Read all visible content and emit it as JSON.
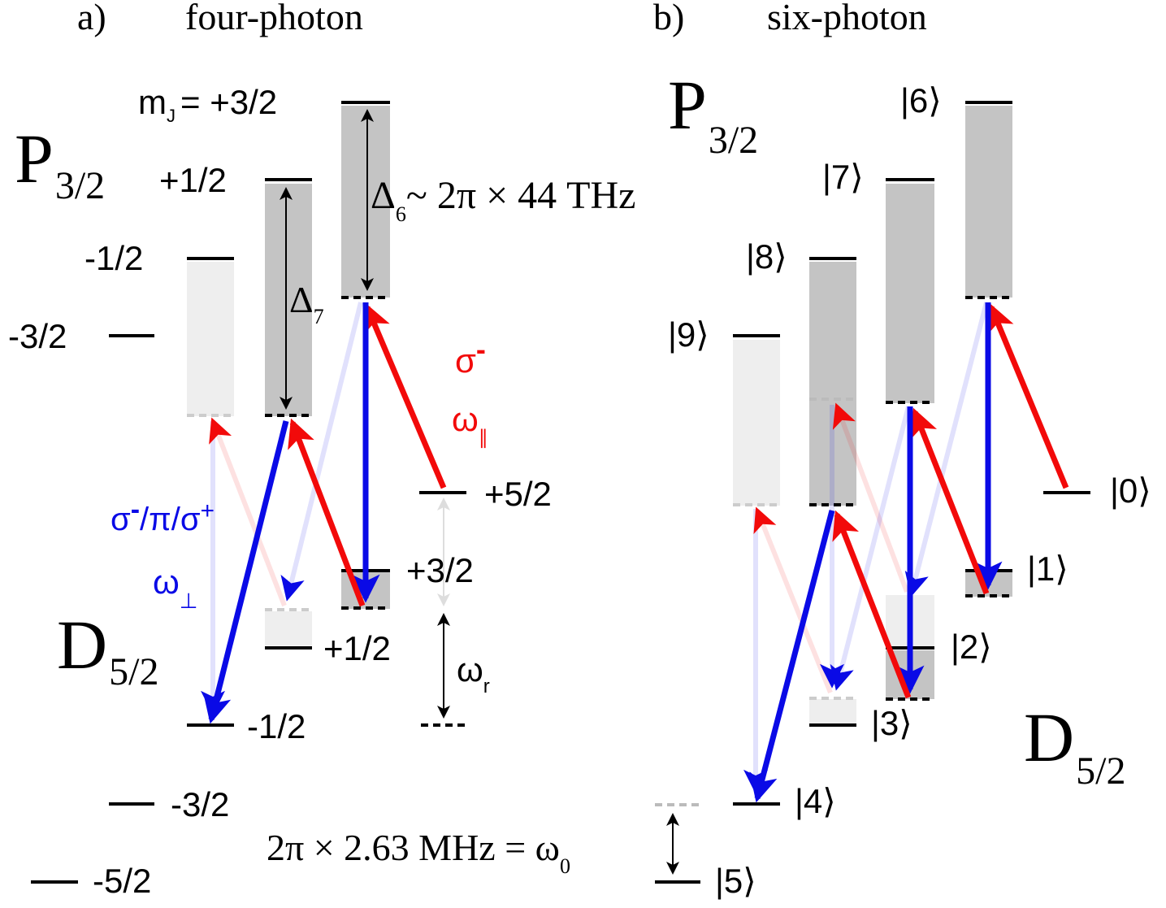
{
  "panel_a": {
    "letter": "a)",
    "title": "four-photon",
    "p_label": "P",
    "p_sub": "3/2",
    "d_label": "D",
    "d_sub": "5/2",
    "mj_prefix": "m",
    "mj_sub": "J",
    "mj_eq": "= +3/2",
    "p_levels": [
      "+1/2",
      "-1/2",
      "-3/2"
    ],
    "d_levels": [
      "+5/2",
      "+3/2",
      "+1/2",
      "-1/2",
      "-3/2",
      "-5/2"
    ],
    "delta6_sym": "Δ",
    "delta6_sub": "6",
    "delta6_value": "~ 2π × 44 THz",
    "delta7_sym": "Δ",
    "delta7_sub": "7",
    "sigma_minus_red": "σ",
    "sigma_minus_red_sup": "-",
    "omega_par": "ω",
    "omega_par_sub": "∥",
    "sigma_blue_1": "σ",
    "sigma_blue_1_sup": "-",
    "sigma_blue_mid": "/π/σ",
    "sigma_blue_2_sup": "+",
    "omega_perp": "ω",
    "omega_perp_sub": "⊥",
    "omega_r": "ω",
    "omega_r_sub": "r",
    "zeeman_text": "2π × 2.63 MHz = ω",
    "zeeman_sub": "0"
  },
  "panel_b": {
    "letter": "b)",
    "title": "six-photon",
    "p_label": "P",
    "p_sub": "3/2",
    "d_label": "D",
    "d_sub": "5/2",
    "kets": [
      "|6⟩",
      "|7⟩",
      "|8⟩",
      "|9⟩",
      "|0⟩",
      "|1⟩",
      "|2⟩",
      "|3⟩",
      "|4⟩",
      "|5⟩"
    ]
  },
  "colors": {
    "red": "#f20a0a",
    "blue": "#0a0ae6",
    "gray": "#c4c4c4",
    "light_gray": "#eeeeee"
  }
}
